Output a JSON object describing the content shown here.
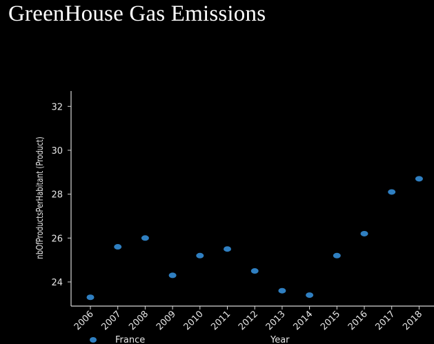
{
  "title": "GreenHouse Gas Emissions",
  "chart_data": {
    "type": "scatter",
    "title": "GreenHouse Gas Emissions",
    "xlabel": "Year",
    "ylabel": "nbOfProductsPerHabitant (Product)",
    "x": [
      "2006",
      "2007",
      "2008",
      "2009",
      "2010",
      "2011",
      "2012",
      "2013",
      "2014",
      "2015",
      "2016",
      "2017",
      "2018"
    ],
    "series": [
      {
        "name": "France",
        "color": "#2f7fc1",
        "values": [
          23.3,
          25.6,
          26.0,
          24.3,
          25.2,
          25.5,
          24.5,
          23.6,
          23.4,
          25.2,
          26.2,
          28.1,
          28.7
        ]
      }
    ],
    "yticks": [
      24,
      26,
      28,
      30,
      32
    ],
    "ylim": [
      22.9,
      32.7
    ],
    "legend_position": "bottom-left",
    "grid": false
  }
}
